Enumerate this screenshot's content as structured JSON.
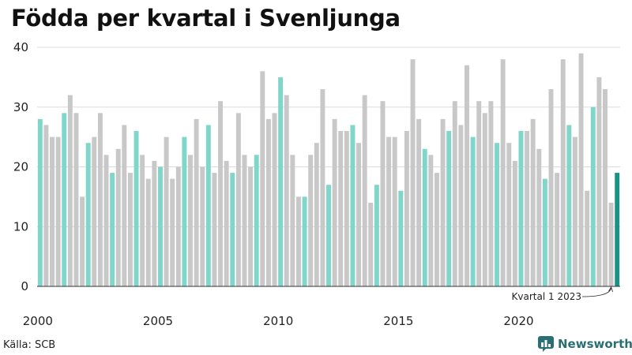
{
  "header": {
    "title": "Födda per kvartal i Svenljunga"
  },
  "footer": {
    "source": "Källa: SCB",
    "brand": "Newsworthy"
  },
  "colors": {
    "highlight": "#7fd6c9",
    "other": "#c8c8c8",
    "latest": "#1e9185",
    "grid": "#dcdcdc",
    "axis": "#333333"
  },
  "chart_data": {
    "type": "bar",
    "ylim": [
      0,
      40
    ],
    "yticks": [
      0,
      10,
      20,
      30,
      40
    ],
    "xtick_labels": [
      "2000",
      "2005",
      "2010",
      "2015",
      "2020"
    ],
    "highlight_quarter": 1,
    "annotation": "Kvartal 1 2023",
    "series": [
      {
        "year": 2000,
        "values": [
          28,
          27,
          25,
          25
        ]
      },
      {
        "year": 2001,
        "values": [
          29,
          32,
          29,
          15
        ]
      },
      {
        "year": 2002,
        "values": [
          24,
          25,
          29,
          22
        ]
      },
      {
        "year": 2003,
        "values": [
          19,
          23,
          27,
          19
        ]
      },
      {
        "year": 2004,
        "values": [
          26,
          22,
          18,
          21
        ]
      },
      {
        "year": 2005,
        "values": [
          20,
          25,
          18,
          20
        ]
      },
      {
        "year": 2006,
        "values": [
          25,
          22,
          28,
          20
        ]
      },
      {
        "year": 2007,
        "values": [
          27,
          19,
          31,
          21
        ]
      },
      {
        "year": 2008,
        "values": [
          19,
          29,
          22,
          20
        ]
      },
      {
        "year": 2009,
        "values": [
          22,
          36,
          28,
          29
        ]
      },
      {
        "year": 2010,
        "values": [
          35,
          32,
          22,
          15
        ]
      },
      {
        "year": 2011,
        "values": [
          15,
          22,
          24,
          33
        ]
      },
      {
        "year": 2012,
        "values": [
          17,
          28,
          26,
          26
        ]
      },
      {
        "year": 2013,
        "values": [
          27,
          24,
          32,
          14
        ]
      },
      {
        "year": 2014,
        "values": [
          17,
          31,
          25,
          25
        ]
      },
      {
        "year": 2015,
        "values": [
          16,
          26,
          38,
          28
        ]
      },
      {
        "year": 2016,
        "values": [
          23,
          22,
          19,
          28
        ]
      },
      {
        "year": 2017,
        "values": [
          26,
          31,
          27,
          37
        ]
      },
      {
        "year": 2018,
        "values": [
          25,
          31,
          29,
          31
        ]
      },
      {
        "year": 2019,
        "values": [
          24,
          38,
          24,
          21
        ]
      },
      {
        "year": 2020,
        "values": [
          26,
          26,
          28,
          23
        ]
      },
      {
        "year": 2021,
        "values": [
          18,
          33,
          19,
          38
        ]
      },
      {
        "year": 2022,
        "values": [
          27,
          25,
          39,
          16
        ]
      },
      {
        "year": 2023,
        "values": [
          30,
          35,
          33,
          14
        ]
      },
      {
        "year": 2024,
        "values": [
          19
        ]
      }
    ]
  }
}
